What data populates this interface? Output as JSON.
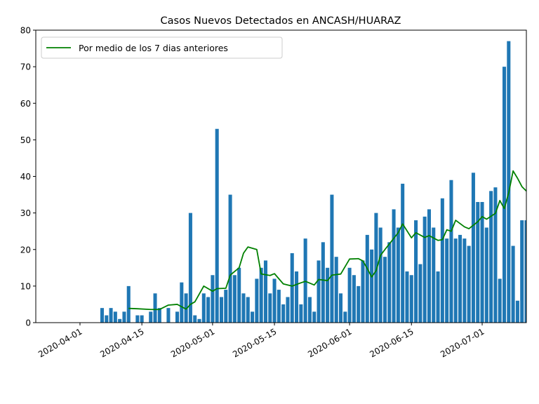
{
  "chart_data": {
    "type": "bar",
    "title": "Casos Nuevos Detectados en ANCASH/HUARAZ",
    "xlabel": "",
    "ylabel": "",
    "ylim": [
      0,
      80
    ],
    "yticks": [
      0,
      10,
      20,
      30,
      40,
      50,
      60,
      70,
      80
    ],
    "xlim": [
      "2020-03-22",
      "2020-07-11"
    ],
    "xtick_labels": [
      "2020-04-01",
      "2020-04-15",
      "2020-05-01",
      "2020-05-15",
      "2020-06-01",
      "2020-06-15",
      "2020-07-01"
    ],
    "grid": false,
    "legend": {
      "placement": "top-left",
      "entries": [
        "Por medio de los 7 dias anteriores"
      ]
    },
    "colors": {
      "bars": "#1f77b4",
      "line": "#008000"
    },
    "bars": {
      "dates": [
        "2020-04-06",
        "2020-04-07",
        "2020-04-08",
        "2020-04-09",
        "2020-04-10",
        "2020-04-11",
        "2020-04-12",
        "2020-04-14",
        "2020-04-15",
        "2020-04-17",
        "2020-04-18",
        "2020-04-19",
        "2020-04-21",
        "2020-04-23",
        "2020-04-24",
        "2020-04-25",
        "2020-04-26",
        "2020-04-27",
        "2020-04-28",
        "2020-04-29",
        "2020-04-30",
        "2020-05-01",
        "2020-05-02",
        "2020-05-03",
        "2020-05-04",
        "2020-05-05",
        "2020-05-06",
        "2020-05-07",
        "2020-05-08",
        "2020-05-09",
        "2020-05-10",
        "2020-05-11",
        "2020-05-12",
        "2020-05-13",
        "2020-05-14",
        "2020-05-15",
        "2020-05-16",
        "2020-05-17",
        "2020-05-18",
        "2020-05-19",
        "2020-05-20",
        "2020-05-21",
        "2020-05-22",
        "2020-05-23",
        "2020-05-24",
        "2020-05-25",
        "2020-05-26",
        "2020-05-27",
        "2020-05-28",
        "2020-05-29",
        "2020-05-30",
        "2020-05-31",
        "2020-06-01",
        "2020-06-02",
        "2020-06-03",
        "2020-06-04",
        "2020-06-05",
        "2020-06-06",
        "2020-06-07",
        "2020-06-08",
        "2020-06-09",
        "2020-06-10",
        "2020-06-11",
        "2020-06-12",
        "2020-06-13",
        "2020-06-14",
        "2020-06-15",
        "2020-06-16",
        "2020-06-17",
        "2020-06-18",
        "2020-06-19",
        "2020-06-20",
        "2020-06-21",
        "2020-06-22",
        "2020-06-23",
        "2020-06-24",
        "2020-06-25",
        "2020-06-26",
        "2020-06-27",
        "2020-06-28",
        "2020-06-29",
        "2020-06-30",
        "2020-07-01",
        "2020-07-02",
        "2020-07-03",
        "2020-07-04",
        "2020-07-05",
        "2020-07-06",
        "2020-07-07",
        "2020-07-08",
        "2020-07-09",
        "2020-07-10",
        "2020-07-11"
      ],
      "values": [
        4,
        2,
        4,
        3,
        1,
        3,
        10,
        2,
        2,
        3,
        8,
        4,
        4,
        3,
        11,
        8,
        30,
        2,
        1,
        8,
        7,
        13,
        53,
        7,
        9,
        35,
        13,
        15,
        8,
        7,
        3,
        12,
        15,
        17,
        8,
        12,
        9,
        5,
        7,
        19,
        14,
        5,
        23,
        7,
        3,
        17,
        22,
        15,
        35,
        18,
        8,
        3,
        15,
        13,
        10,
        17,
        24,
        20,
        30,
        26,
        18,
        22,
        31,
        26,
        38,
        14,
        13,
        28,
        16,
        29,
        31,
        26,
        14,
        34,
        23,
        39,
        23,
        24,
        23,
        21,
        41,
        33,
        33,
        26,
        36,
        37,
        12,
        70,
        77,
        21,
        6,
        28,
        28
      ]
    },
    "series": [
      {
        "name": "Por medio de los 7 dias anteriores",
        "x": [
          "2020-04-12",
          "2020-04-14",
          "2020-04-17",
          "2020-04-19",
          "2020-04-21",
          "2020-04-23",
          "2020-04-25",
          "2020-04-26",
          "2020-04-27",
          "2020-04-29",
          "2020-05-01",
          "2020-05-02",
          "2020-05-04",
          "2020-05-05",
          "2020-05-07",
          "2020-05-08",
          "2020-05-09",
          "2020-05-11",
          "2020-05-12",
          "2020-05-14",
          "2020-05-15",
          "2020-05-17",
          "2020-05-19",
          "2020-05-21",
          "2020-05-22",
          "2020-05-24",
          "2020-05-25",
          "2020-05-27",
          "2020-05-28",
          "2020-05-30",
          "2020-06-01",
          "2020-06-03",
          "2020-06-04",
          "2020-06-05",
          "2020-06-06",
          "2020-06-07",
          "2020-06-08",
          "2020-06-09",
          "2020-06-12",
          "2020-06-13",
          "2020-06-15",
          "2020-06-16",
          "2020-06-18",
          "2020-06-19",
          "2020-06-21",
          "2020-06-22",
          "2020-06-23",
          "2020-06-24",
          "2020-06-25",
          "2020-06-27",
          "2020-06-28",
          "2020-06-30",
          "2020-07-01",
          "2020-07-02",
          "2020-07-04",
          "2020-07-05",
          "2020-07-06",
          "2020-07-07",
          "2020-07-08",
          "2020-07-09",
          "2020-07-10",
          "2020-07-11"
        ],
        "y": [
          3.9,
          3.8,
          3.6,
          3.6,
          4.8,
          5.0,
          3.7,
          5.0,
          5.7,
          10.0,
          8.6,
          9.3,
          9.4,
          13.0,
          15.0,
          19.0,
          20.7,
          20.0,
          13.3,
          12.9,
          13.4,
          10.6,
          10.0,
          10.9,
          11.3,
          10.3,
          11.8,
          11.5,
          13.0,
          13.3,
          17.4,
          17.5,
          16.9,
          14.8,
          12.5,
          14.2,
          18.4,
          20.0,
          24.6,
          27.0,
          23.2,
          24.6,
          23.3,
          23.8,
          22.5,
          22.7,
          25.4,
          25.0,
          28.0,
          26.2,
          25.7,
          27.6,
          29.0,
          28.3,
          29.9,
          33.4,
          31.2,
          35.5,
          41.5,
          39.5,
          37.2,
          36.0
        ]
      }
    ]
  }
}
